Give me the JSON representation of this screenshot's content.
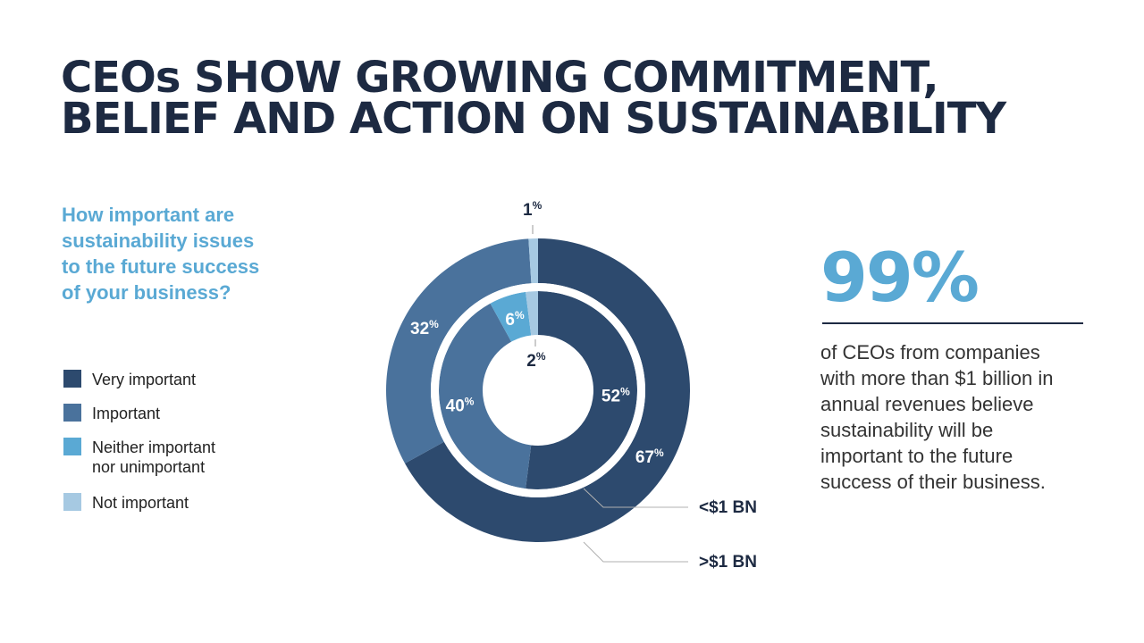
{
  "title": {
    "line1": "CEOs SHOW GROWING COMMITMENT,",
    "line2": "BELIEF AND ACTION ON SUSTAINABILITY"
  },
  "question": {
    "line1": "How important are",
    "line2": "sustainability issues",
    "line3": "to the future success",
    "line4": "of your business?"
  },
  "legend": [
    {
      "label": "Very important",
      "color": "#2d4a6e"
    },
    {
      "label": "Important",
      "color": "#4a729c"
    },
    {
      "label": "Neither important\nnor unimportant",
      "color": "#5aa9d4"
    },
    {
      "label": "Not important",
      "color": "#a6c9e2"
    }
  ],
  "callout": {
    "value": "99%",
    "line1": "of CEOs from companies",
    "line2": "with more than $1 billion in",
    "line3": "annual revenues believe",
    "line4": "sustainability will be",
    "line5": "important to the future",
    "line6": "success of their business."
  },
  "chart_data": {
    "type": "pie",
    "subtype": "nested-donut",
    "categories": [
      "Very important",
      "Important",
      "Neither important nor unimportant",
      "Not important"
    ],
    "series": [
      {
        "name": ">$1 BN",
        "ring": "outer",
        "values": [
          67,
          32,
          0,
          1
        ],
        "labels": [
          "67%",
          "32%",
          "",
          "1%"
        ]
      },
      {
        "name": "<$1 BN",
        "ring": "inner",
        "values": [
          52,
          40,
          6,
          2
        ],
        "labels": [
          "52%",
          "40%",
          "6%",
          "2%"
        ]
      }
    ],
    "colors": [
      "#2d4a6e",
      "#4a729c",
      "#5aa9d4",
      "#a6c9e2"
    ],
    "unit": "%",
    "legend": "left"
  }
}
